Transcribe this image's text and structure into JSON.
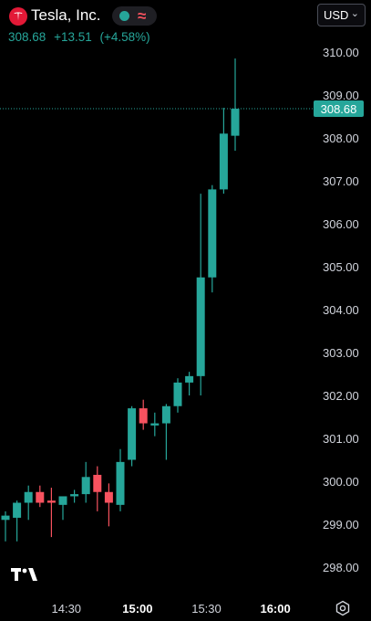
{
  "header": {
    "company_name": "Tesla, Inc.",
    "last_price": "308.68",
    "change": "+13.51",
    "change_percent": "(+4.58%)",
    "currency": "USD",
    "status_icons": [
      "market-open-dot-icon",
      "extended-hours-wave-icon"
    ]
  },
  "colors": {
    "up": "#26a69a",
    "down": "#f7525f",
    "background": "#000000",
    "text": "#d1d4dc",
    "price_label_bg": "#26a69a"
  },
  "chart_data": {
    "type": "candlestick",
    "ylim": [
      297.8,
      310.4
    ],
    "y_ticks": [
      "298.00",
      "299.00",
      "300.00",
      "301.00",
      "302.00",
      "303.00",
      "304.00",
      "305.00",
      "306.00",
      "307.00",
      "308.00",
      "309.00",
      "310.00"
    ],
    "x_ticks": [
      {
        "label": "14:30",
        "index": 5.3,
        "bold": false
      },
      {
        "label": "15:00",
        "index": 11.5,
        "bold": true
      },
      {
        "label": "15:30",
        "index": 17.5,
        "bold": false
      },
      {
        "label": "16:00",
        "index": 23.5,
        "bold": true
      }
    ],
    "current_price": 308.68,
    "current_price_label": "308.68",
    "candles": [
      {
        "o": 299.1,
        "h": 299.3,
        "l": 298.6,
        "c": 299.2
      },
      {
        "o": 299.15,
        "h": 299.55,
        "l": 298.6,
        "c": 299.5
      },
      {
        "o": 299.5,
        "h": 299.9,
        "l": 299.1,
        "c": 299.75
      },
      {
        "o": 299.75,
        "h": 299.9,
        "l": 299.4,
        "c": 299.5
      },
      {
        "o": 299.55,
        "h": 299.85,
        "l": 298.7,
        "c": 299.5
      },
      {
        "o": 299.45,
        "h": 299.6,
        "l": 299.1,
        "c": 299.65
      },
      {
        "o": 299.65,
        "h": 299.8,
        "l": 299.5,
        "c": 299.7
      },
      {
        "o": 299.7,
        "h": 300.45,
        "l": 299.5,
        "c": 300.1
      },
      {
        "o": 300.15,
        "h": 300.35,
        "l": 299.3,
        "c": 299.75
      },
      {
        "o": 299.75,
        "h": 299.95,
        "l": 298.95,
        "c": 299.5
      },
      {
        "o": 299.45,
        "h": 300.75,
        "l": 299.3,
        "c": 300.45
      },
      {
        "o": 300.5,
        "h": 301.75,
        "l": 300.35,
        "c": 301.7
      },
      {
        "o": 301.7,
        "h": 301.9,
        "l": 301.2,
        "c": 301.35
      },
      {
        "o": 301.3,
        "h": 301.6,
        "l": 301.05,
        "c": 301.35
      },
      {
        "o": 301.35,
        "h": 301.8,
        "l": 300.5,
        "c": 301.75
      },
      {
        "o": 301.75,
        "h": 302.4,
        "l": 301.6,
        "c": 302.3
      },
      {
        "o": 302.3,
        "h": 302.55,
        "l": 302.0,
        "c": 302.45
      },
      {
        "o": 302.45,
        "h": 306.7,
        "l": 302.0,
        "c": 304.75
      },
      {
        "o": 304.75,
        "h": 306.9,
        "l": 304.4,
        "c": 306.8
      },
      {
        "o": 306.8,
        "h": 308.7,
        "l": 306.7,
        "c": 308.1
      },
      {
        "o": 308.05,
        "h": 309.85,
        "l": 307.7,
        "c": 308.68
      }
    ]
  }
}
